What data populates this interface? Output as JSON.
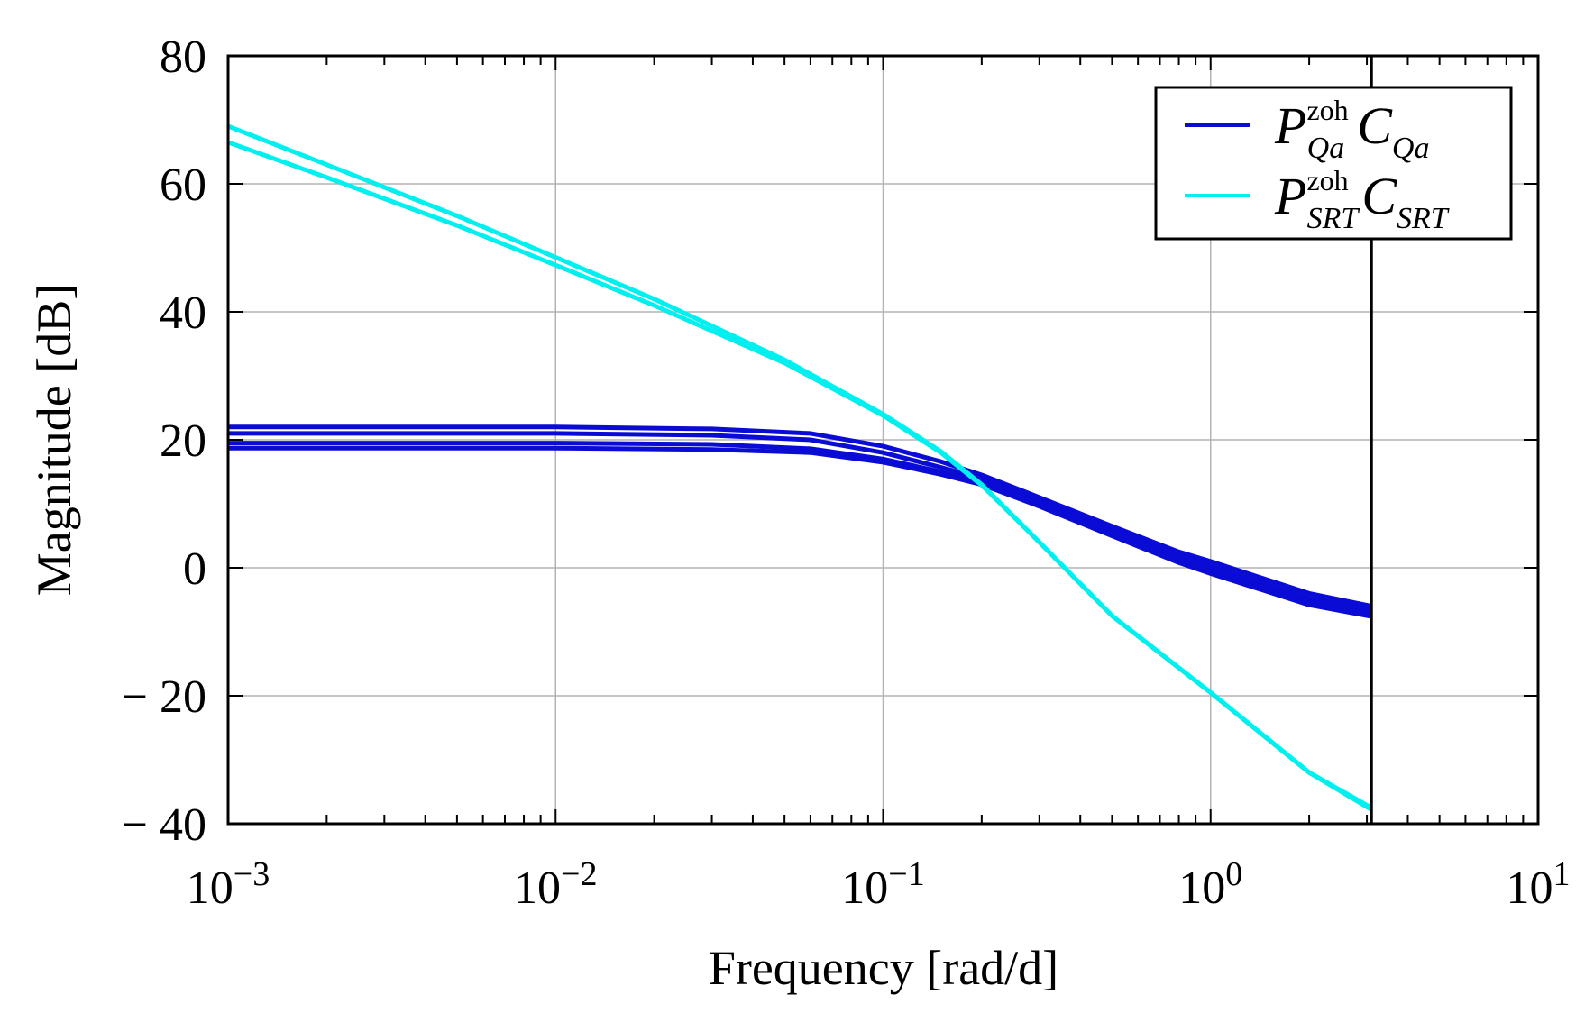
{
  "chart_data": {
    "type": "line",
    "title": "",
    "xlabel": "Frequency [rad/d]",
    "ylabel": "Magnitude [dB]",
    "xscale": "log",
    "xlim": [
      0.001,
      10
    ],
    "ylim": [
      -40,
      80
    ],
    "grid": true,
    "vertical_marker_x": 3.1,
    "x_ticks": [
      {
        "value": 0.001,
        "base": "10",
        "exp": "−3"
      },
      {
        "value": 0.01,
        "base": "10",
        "exp": "−2"
      },
      {
        "value": 0.1,
        "base": "10",
        "exp": "−1"
      },
      {
        "value": 1,
        "base": "10",
        "exp": "0"
      },
      {
        "value": 10,
        "base": "10",
        "exp": "1"
      }
    ],
    "y_ticks": [
      {
        "value": 80,
        "label": "80"
      },
      {
        "value": 60,
        "label": "60"
      },
      {
        "value": 40,
        "label": "40"
      },
      {
        "value": 20,
        "label": "20"
      },
      {
        "value": 0,
        "label": "0"
      },
      {
        "value": -20,
        "label": "− 20"
      },
      {
        "value": -40,
        "label": "− 40"
      }
    ],
    "legend": {
      "position": "top-right",
      "entries": [
        {
          "base": "P",
          "sup": "zoh",
          "sub": "Qa",
          "base2": "C",
          "sub2": "Qa",
          "color": "#0b0bd6"
        },
        {
          "base": "P",
          "sup": "zoh",
          "sub": "SRT",
          "base2": "C",
          "sub2": "SRT",
          "color": "#00f0f0"
        }
      ]
    },
    "series": [
      {
        "name": "PQa_zoh CQa (1)",
        "group": "Qa",
        "color": "#0b0bd6",
        "x": [
          0.001,
          0.01,
          0.03,
          0.06,
          0.1,
          0.15,
          0.2,
          0.3,
          0.5,
          0.8,
          1,
          2,
          3.1
        ],
        "y": [
          22,
          22,
          21.7,
          21,
          19,
          16.6,
          14.5,
          11,
          6.5,
          2.5,
          1,
          -4,
          -6
        ]
      },
      {
        "name": "PQa_zoh CQa (2)",
        "group": "Qa",
        "color": "#0b0bd6",
        "x": [
          0.001,
          0.01,
          0.03,
          0.06,
          0.1,
          0.15,
          0.2,
          0.3,
          0.5,
          0.8,
          1,
          2,
          3.1
        ],
        "y": [
          21,
          21,
          20.7,
          20,
          18,
          15.7,
          14,
          10.5,
          6,
          2,
          0.3,
          -4.7,
          -6.6
        ]
      },
      {
        "name": "PQa_zoh CQa (3)",
        "group": "Qa",
        "color": "#0b0bd6",
        "x": [
          0.001,
          0.01,
          0.03,
          0.06,
          0.1,
          0.15,
          0.2,
          0.3,
          0.5,
          0.8,
          1,
          2,
          3.1
        ],
        "y": [
          19.5,
          19.5,
          19.3,
          18.6,
          17,
          15,
          13.4,
          10,
          5.5,
          1.4,
          -0.3,
          -5.3,
          -7.2
        ]
      },
      {
        "name": "PQa_zoh CQa (4)",
        "group": "Qa",
        "color": "#0b0bd6",
        "x": [
          0.001,
          0.01,
          0.03,
          0.06,
          0.1,
          0.15,
          0.2,
          0.3,
          0.5,
          0.8,
          1,
          2,
          3.1
        ],
        "y": [
          18.7,
          18.7,
          18.5,
          18,
          16.5,
          14.6,
          13,
          9.6,
          5,
          0.8,
          -0.9,
          -5.8,
          -7.6
        ]
      },
      {
        "name": "PSRT_zoh CSRT (1)",
        "group": "SRT",
        "color": "#00f0f0",
        "x": [
          0.001,
          0.002,
          0.005,
          0.01,
          0.02,
          0.05,
          0.1,
          0.15,
          0.2,
          0.3,
          0.5,
          1,
          2,
          3.1
        ],
        "y": [
          69,
          63,
          55,
          48.5,
          42,
          32.5,
          24,
          18.2,
          13,
          4,
          -7.5,
          -19.5,
          -32,
          -37.5
        ]
      },
      {
        "name": "PSRT_zoh CSRT (2)",
        "group": "SRT",
        "color": "#00f0f0",
        "x": [
          0.001,
          0.002,
          0.005,
          0.01,
          0.02,
          0.05,
          0.1,
          0.15,
          0.2,
          0.3,
          0.5,
          1,
          2,
          3.1
        ],
        "y": [
          66.5,
          61,
          53.5,
          47.3,
          41,
          32,
          23.8,
          18,
          12.9,
          4,
          -7.5,
          -19.5,
          -32,
          -37.8
        ]
      }
    ]
  }
}
